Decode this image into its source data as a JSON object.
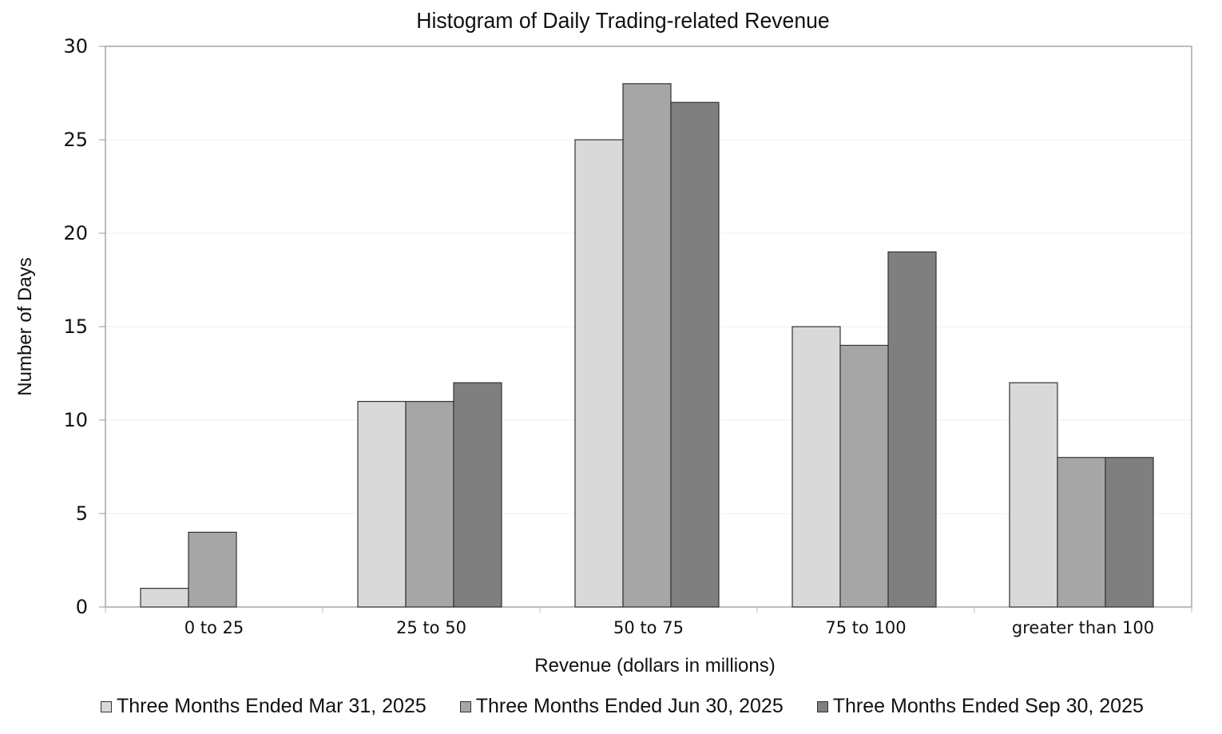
{
  "chart_data": {
    "type": "bar",
    "title": "Histogram of Daily Trading-related Revenue",
    "xlabel": "Revenue (dollars in millions)",
    "ylabel": "Number of Days",
    "ylim": [
      0,
      30
    ],
    "yticks": [
      "0",
      "5",
      "10",
      "15",
      "20",
      "25",
      "30"
    ],
    "grid": true,
    "legend_position": "bottom",
    "categories": [
      "0 to 25",
      "25 to 50",
      "50 to 75",
      "75 to 100",
      "greater than 100"
    ],
    "series": [
      {
        "name": "Three Months Ended Mar 31, 2025",
        "color": "#d9d9d9",
        "values": [
          1,
          11,
          25,
          15,
          12
        ]
      },
      {
        "name": "Three Months Ended Jun 30, 2025",
        "color": "#a6a6a6",
        "values": [
          4,
          11,
          28,
          14,
          8
        ]
      },
      {
        "name": "Three Months Ended Sep 30, 2025",
        "color": "#7f7f7f",
        "values": [
          0,
          12,
          27,
          19,
          8
        ]
      }
    ]
  }
}
